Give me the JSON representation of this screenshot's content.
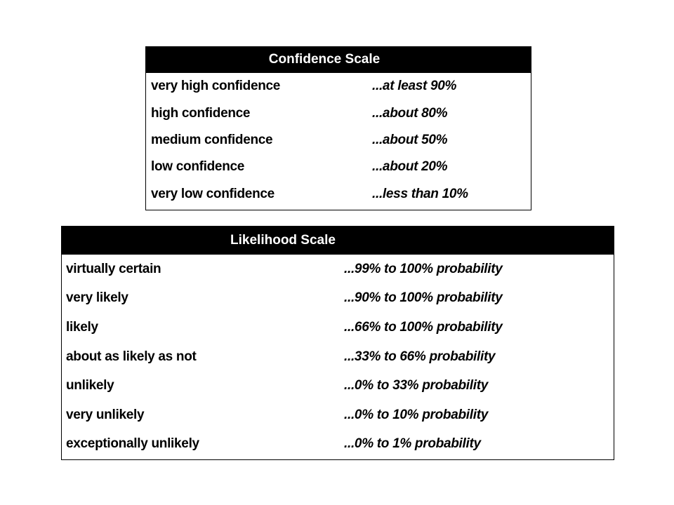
{
  "tables": [
    {
      "title": "Confidence Scale",
      "rows": [
        [
          "very high confidence",
          "...at least 90%"
        ],
        [
          "high confidence",
          "...about 80%"
        ],
        [
          "medium confidence",
          "...about 50%"
        ],
        [
          "low confidence",
          "...about 20%"
        ],
        [
          "very low confidence",
          "...less than 10%"
        ]
      ]
    },
    {
      "title": "Likelihood Scale",
      "rows": [
        [
          "virtually certain",
          "...99% to 100% probability"
        ],
        [
          "very likely",
          "...90% to 100% probability"
        ],
        [
          "likely",
          "...66% to 100% probability"
        ],
        [
          "about as likely as not",
          "...33% to 66% probability"
        ],
        [
          "unlikely",
          "...0% to 33% probability"
        ],
        [
          "very unlikely",
          "...0% to 10% probability"
        ],
        [
          "exceptionally unlikely",
          "...0% to 1% probability"
        ]
      ]
    }
  ]
}
